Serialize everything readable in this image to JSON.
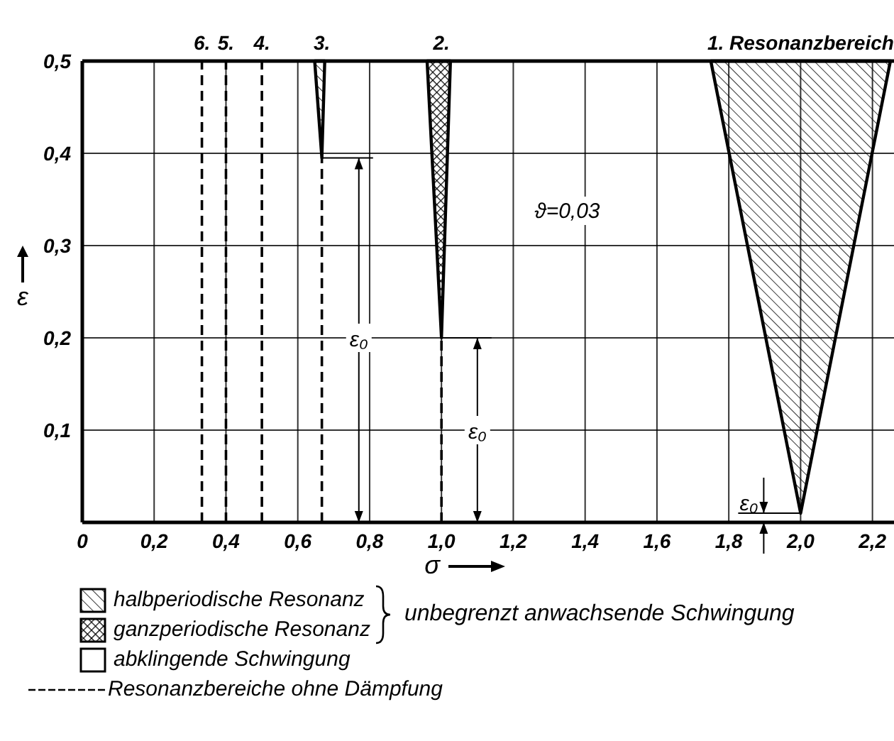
{
  "chart_data": {
    "type": "area",
    "xlabel": "σ",
    "ylabel": "ε",
    "xlim": [
      0,
      2.26
    ],
    "ylim": [
      0,
      0.5
    ],
    "xticks": [
      {
        "value": 0,
        "label": "0"
      },
      {
        "value": 0.2,
        "label": "0,2"
      },
      {
        "value": 0.4,
        "label": "0,4"
      },
      {
        "value": 0.6,
        "label": "0,6"
      },
      {
        "value": 0.8,
        "label": "0,8"
      },
      {
        "value": 1.0,
        "label": "1,0"
      },
      {
        "value": 1.2,
        "label": "1,2"
      },
      {
        "value": 1.4,
        "label": "1,4"
      },
      {
        "value": 1.6,
        "label": "1,6"
      },
      {
        "value": 1.8,
        "label": "1,8"
      },
      {
        "value": 2.0,
        "label": "2,0"
      },
      {
        "value": 2.2,
        "label": "2,2"
      }
    ],
    "yticks": [
      {
        "value": 0,
        "label": null
      },
      {
        "value": 0.1,
        "label": "0,1"
      },
      {
        "value": 0.2,
        "label": "0,2"
      },
      {
        "value": 0.3,
        "label": "0,3"
      },
      {
        "value": 0.4,
        "label": "0,4"
      },
      {
        "value": 0.5,
        "label": "0,5"
      }
    ],
    "grid": true,
    "legend": "bottom",
    "series": [
      {
        "name": "halbperiodische Resonanz",
        "color": "#000000",
        "x": [
          1.75,
          2.0,
          2.25,
          null,
          0.647,
          0.667,
          0.675
        ],
        "values": [
          0.5,
          0.01,
          0.5,
          null,
          0.5,
          0.395,
          0.5
        ]
      },
      {
        "name": "ganzperiodische Resonanz",
        "color": "#000000",
        "x": [
          0.96,
          1.0,
          1.025
        ],
        "values": [
          0.5,
          0.2,
          0.5
        ]
      },
      {
        "name": "Resonanzbereiche ohne Dämpfung",
        "type": "line",
        "line_style": "dashed",
        "color": "#000000",
        "x": [
          0.333,
          0.333,
          null,
          0.4,
          0.4,
          null,
          0.5,
          0.5,
          null,
          0.667,
          0.667,
          null,
          1.0,
          1.0
        ],
        "values": [
          0,
          0.5,
          null,
          0,
          0.5,
          null,
          0,
          0.5,
          null,
          0,
          0.395,
          null,
          0,
          0.2
        ]
      }
    ],
    "annotations": [
      {
        "text": "6.",
        "x": 0.333,
        "y": 0.5
      },
      {
        "text": "5.",
        "x": 0.4,
        "y": 0.5
      },
      {
        "text": "4.",
        "x": 0.5,
        "y": 0.5
      },
      {
        "text": "3.",
        "x": 0.667,
        "y": 0.5
      },
      {
        "text": "2.",
        "x": 1.0,
        "y": 0.5
      },
      {
        "text": "1. Resonanzbereich",
        "x": 2.0,
        "y": 0.5
      },
      {
        "text": "ε₀",
        "x": 0.77,
        "y": 0.2
      },
      {
        "text": "ε₀",
        "x": 1.1,
        "y": 0.1
      },
      {
        "text": "ε₀",
        "x": 2.0,
        "y": 0.01
      },
      "ϑ=0,03",
      "abklingende Schwingung",
      "unbegrenzt anwachsende Schwingung"
    ]
  }
}
